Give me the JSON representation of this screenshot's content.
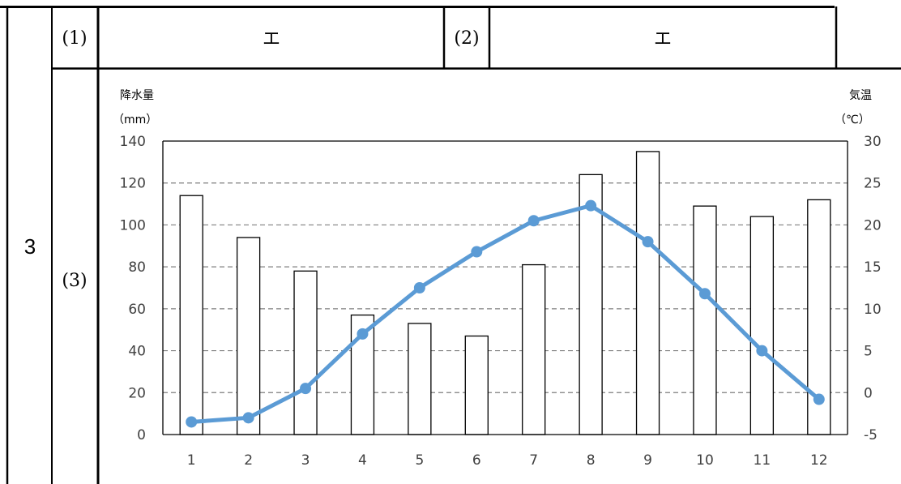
{
  "table": {
    "question_number": "3",
    "row1": {
      "q1_label": "(1)",
      "q1_answer": "エ",
      "q2_label": "(2)",
      "q2_answer": "エ"
    },
    "row2": {
      "q3_label": "(3)"
    }
  },
  "chart_data": {
    "type": "bar+line",
    "categories": [
      "1",
      "2",
      "3",
      "4",
      "5",
      "6",
      "7",
      "8",
      "9",
      "10",
      "11",
      "12"
    ],
    "series": [
      {
        "type": "bar",
        "axis": "left",
        "values": [
          114,
          94,
          78,
          57,
          53,
          47,
          81,
          124,
          135,
          109,
          104,
          112
        ],
        "color": "#ffffff",
        "stroke": "#000000"
      },
      {
        "type": "line",
        "axis": "right",
        "values": [
          -3.5,
          -3.0,
          0.5,
          7.0,
          12.5,
          16.8,
          20.5,
          22.3,
          18.0,
          11.8,
          5.0,
          -0.8
        ],
        "color": "#5b9bd5"
      }
    ],
    "left_axis": {
      "label_line1": "降水量",
      "label_line2": "（mm）",
      "min": 0,
      "max": 140,
      "step": 20,
      "ticks": [
        "0",
        "20",
        "40",
        "60",
        "80",
        "100",
        "120",
        "140"
      ]
    },
    "right_axis": {
      "label_line1": "気温",
      "label_line2": "（℃）",
      "min": -5,
      "max": 30,
      "step": 5,
      "ticks": [
        "-5",
        "0",
        "5",
        "10",
        "15",
        "20",
        "25",
        "30"
      ]
    },
    "grid": "horizontal-dashed"
  }
}
